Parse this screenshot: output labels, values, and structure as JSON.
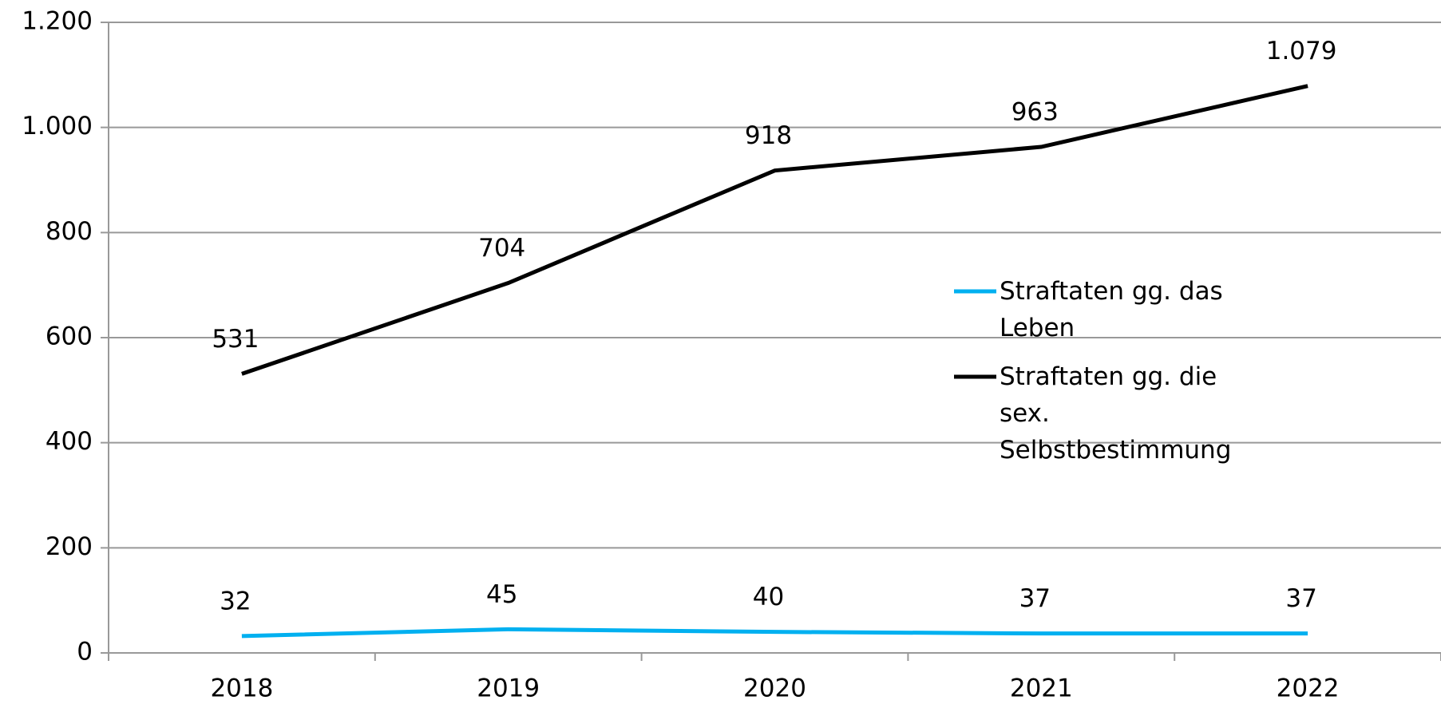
{
  "chart_data": {
    "type": "line",
    "categories": [
      "2018",
      "2019",
      "2020",
      "2021",
      "2022"
    ],
    "series": [
      {
        "name": "Straftaten gg. das Leben",
        "color": "#00b0f0",
        "values": [
          32,
          45,
          40,
          37,
          37
        ]
      },
      {
        "name": "Straftaten gg. die sex. Selbstbestimmung",
        "color": "#000000",
        "values": [
          531,
          704,
          918,
          963,
          1079
        ],
        "value_labels": [
          "531",
          "704",
          "918",
          "963",
          "1.079"
        ]
      }
    ],
    "ylim": [
      0,
      1200
    ],
    "yticks": [
      0,
      200,
      400,
      600,
      800,
      {
        "value": 1000,
        "label": "1.000"
      },
      {
        "value": 1200,
        "label": "1.200"
      }
    ],
    "grid": true,
    "legend": "right"
  }
}
